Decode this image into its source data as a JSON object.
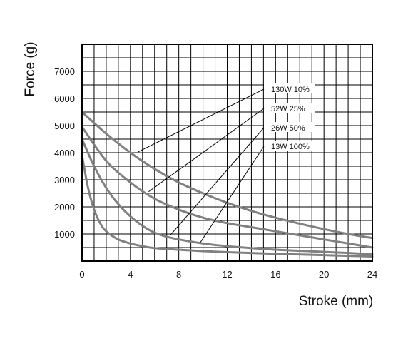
{
  "chart_data": {
    "type": "line",
    "title": "",
    "xlabel": "Stroke (mm)",
    "ylabel": "Force (g)",
    "xlim": [
      0,
      24
    ],
    "ylim": [
      0,
      7000
    ],
    "x_ticks": [
      "0",
      "4",
      "8",
      "12",
      "16",
      "20",
      "24"
    ],
    "y_ticks": [
      "1000",
      "2000",
      "3000",
      "4000",
      "5000",
      "6000",
      "7000"
    ],
    "grid": true,
    "legend": "leader-line labels at right",
    "line_color": "#808080",
    "series": [
      {
        "name": "130W 10%",
        "x": [
          0,
          2,
          4,
          6,
          8,
          10,
          12,
          14,
          16,
          18,
          20,
          22,
          24
        ],
        "y": [
          5500,
          4700,
          4000,
          3400,
          2900,
          2500,
          2150,
          1850,
          1600,
          1380,
          1180,
          1000,
          850
        ]
      },
      {
        "name": "52W 25%",
        "x": [
          0,
          2,
          4,
          6,
          8,
          10,
          12,
          14,
          16,
          18,
          20,
          22,
          24
        ],
        "y": [
          4950,
          3700,
          2900,
          2300,
          1900,
          1600,
          1400,
          1250,
          1100,
          950,
          800,
          650,
          500
        ]
      },
      {
        "name": "26W 50%",
        "x": [
          0,
          1,
          2,
          3,
          4,
          5,
          6,
          7,
          8,
          10,
          12,
          14,
          16,
          18,
          20,
          22,
          24
        ],
        "y": [
          4500,
          3500,
          2700,
          2100,
          1650,
          1300,
          1050,
          900,
          800,
          650,
          550,
          480,
          420,
          380,
          340,
          300,
          250
        ]
      },
      {
        "name": "13W 100%",
        "x": [
          0,
          0.5,
          1,
          1.5,
          2,
          3,
          4,
          5,
          6,
          8,
          10,
          12,
          16,
          20,
          24
        ],
        "y": [
          3900,
          2700,
          1900,
          1400,
          1100,
          800,
          650,
          550,
          480,
          420,
          370,
          330,
          270,
          220,
          170
        ]
      }
    ],
    "annotations": [
      {
        "label": "130W 10%",
        "points_to": {
          "x": 4.6,
          "y": 4020
        }
      },
      {
        "label": "52W 25%",
        "points_to": {
          "x": 5.5,
          "y": 2560
        }
      },
      {
        "label": "26W 50%",
        "points_to": {
          "x": 7.3,
          "y": 960
        }
      },
      {
        "label": "13W 100%",
        "points_to": {
          "x": 9.8,
          "y": 700
        }
      }
    ]
  }
}
